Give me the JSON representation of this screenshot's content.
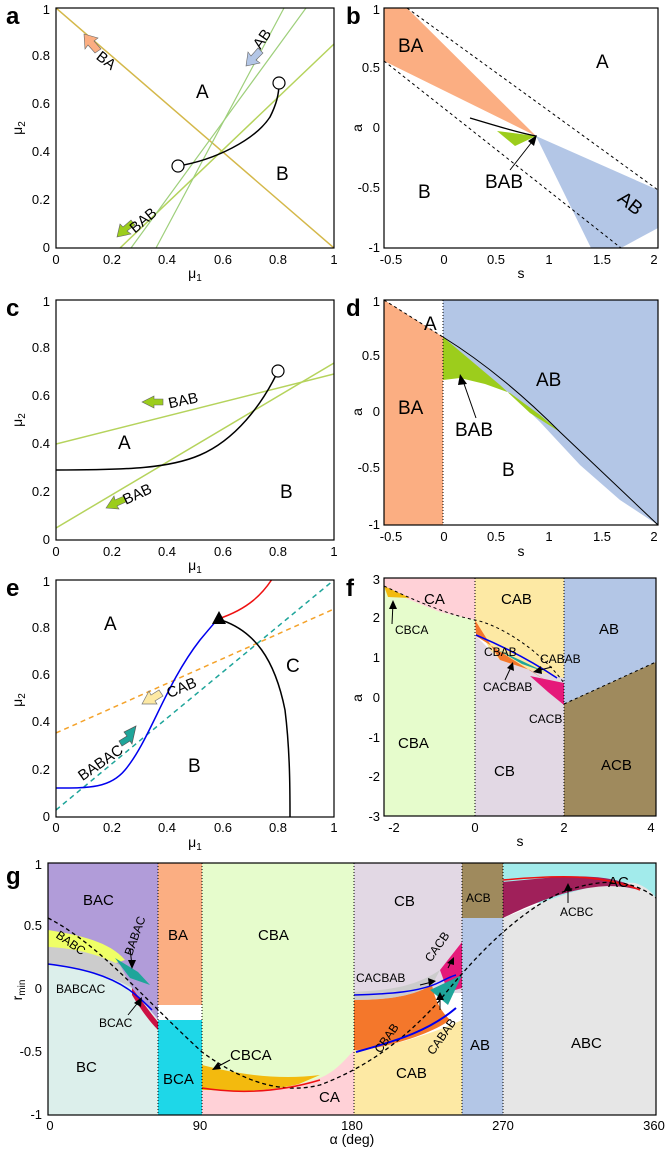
{
  "chart_data": [
    {
      "type": "line",
      "panel": "a",
      "xlabel": "μ1",
      "ylabel": "μ2",
      "xlim": [
        0,
        1
      ],
      "ylim": [
        0,
        1
      ],
      "xticks": [
        "0",
        "0.2",
        "0.4",
        "0.6",
        "0.8",
        "1"
      ],
      "yticks": [
        "0",
        "0.2",
        "0.4",
        "0.6",
        "0.8",
        "1"
      ],
      "regions": [
        "A",
        "B"
      ],
      "annotations": [
        "BA",
        "AB",
        "BAB"
      ],
      "lines": [
        {
          "color": "#d4b84a",
          "points": [
            [
              0,
              1
            ],
            [
              1,
              0
            ]
          ]
        },
        {
          "color": "#b5d35c",
          "points": [
            [
              0.23,
              0
            ],
            [
              1,
              0.85
            ]
          ]
        },
        {
          "color": "#9ecf7b",
          "points": [
            [
              0.27,
              0
            ],
            [
              0.9,
              1
            ]
          ]
        },
        {
          "color": "#9ecf7b",
          "points": [
            [
              0.36,
              0
            ],
            [
              0.82,
              1
            ]
          ]
        },
        {
          "color": "#000000",
          "points": [
            [
              0.44,
              0.34
            ],
            [
              0.55,
              0.37
            ],
            [
              0.65,
              0.42
            ],
            [
              0.74,
              0.52
            ],
            [
              0.8,
              0.68
            ]
          ]
        }
      ],
      "markers": [
        {
          "shape": "circle",
          "x": 0.44,
          "y": 0.34
        },
        {
          "shape": "circle",
          "x": 0.8,
          "y": 0.68
        }
      ]
    },
    {
      "type": "area",
      "panel": "b",
      "xlabel": "s",
      "ylabel": "a",
      "xlim": [
        -0.6,
        2
      ],
      "ylim": [
        -1,
        1
      ],
      "xticks": [
        "-0.5",
        "0",
        "0.5",
        "1",
        "1.5",
        "2"
      ],
      "yticks": [
        "-1",
        "-0.5",
        "0",
        "0.5",
        "1"
      ],
      "regions": [
        {
          "label": "BA",
          "color": "#fbae82",
          "points": [
            [
              -0.6,
              1
            ],
            [
              -0.38,
              1
            ],
            [
              0.88,
              -0.07
            ],
            [
              -0.6,
              0.61
            ]
          ]
        },
        {
          "label": "AB",
          "color": "#b3c6e6",
          "points": [
            [
              0.88,
              -0.07
            ],
            [
              2,
              -0.52
            ],
            [
              2,
              -0.83
            ],
            [
              1.67,
              -1
            ],
            [
              1.37,
              -1
            ]
          ]
        },
        {
          "label": "BAB",
          "color": "#9ccd1c",
          "points": [
            [
              0.5,
              -0.03
            ],
            [
              0.88,
              -0.07
            ],
            [
              0.7,
              -0.12
            ]
          ]
        }
      ],
      "labels": [
        "A",
        "B",
        "BAB"
      ],
      "dashed": [
        [
          [
            -0.38,
            1
          ],
          [
            2,
            -0.52
          ]
        ],
        [
          [
            -0.6,
            0.61
          ],
          [
            1.67,
            -1
          ]
        ]
      ]
    },
    {
      "type": "line",
      "panel": "c",
      "xlabel": "μ1",
      "ylabel": "μ2",
      "xlim": [
        0,
        1
      ],
      "ylim": [
        0,
        1
      ],
      "xticks": [
        "0",
        "0.2",
        "0.4",
        "0.6",
        "0.8",
        "1"
      ],
      "yticks": [
        "0",
        "0.2",
        "0.4",
        "0.6",
        "0.8",
        "1"
      ],
      "regions": [
        "A",
        "B"
      ],
      "annotations": [
        "BAB",
        "BAB"
      ],
      "lines": [
        {
          "color": "#b5d35c",
          "points": [
            [
              0,
              0.4
            ],
            [
              1,
              0.69
            ]
          ]
        },
        {
          "color": "#b5d35c",
          "points": [
            [
              0,
              0.05
            ],
            [
              1,
              0.73
            ]
          ]
        },
        {
          "color": "#000000",
          "points": [
            [
              0,
              0.29
            ],
            [
              0.3,
              0.3
            ],
            [
              0.5,
              0.35
            ],
            [
              0.65,
              0.44
            ],
            [
              0.75,
              0.55
            ],
            [
              0.8,
              0.67
            ]
          ]
        }
      ],
      "markers": [
        {
          "shape": "circle",
          "x": 0.8,
          "y": 0.67
        }
      ]
    },
    {
      "type": "area",
      "panel": "d",
      "xlabel": "s",
      "ylabel": "a",
      "xlim": [
        -0.6,
        2
      ],
      "ylim": [
        -1,
        1
      ],
      "xticks": [
        "-0.5",
        "0",
        "0.5",
        "1",
        "1.5",
        "2"
      ],
      "yticks": [
        "-1",
        "-0.5",
        "0",
        "0.5",
        "1"
      ],
      "regions": [
        {
          "label": "BA",
          "color": "#fbae82",
          "points": [
            [
              -0.6,
              1
            ],
            [
              -0.6,
              -1
            ],
            [
              0,
              -1
            ],
            [
              0,
              0.68
            ]
          ]
        },
        {
          "label": "AB",
          "color": "#b3c6e6",
          "points": [
            [
              0,
              0.68
            ],
            [
              0,
              1
            ],
            [
              2,
              1
            ],
            [
              2,
              -0.92
            ],
            [
              1.6,
              -0.62
            ],
            [
              1.2,
              -0.3
            ],
            [
              0.9,
              -0.05
            ],
            [
              0.6,
              0.17
            ],
            [
              0.35,
              0.3
            ],
            [
              0,
              0.36
            ]
          ]
        },
        {
          "label": "BAB",
          "color": "#9ccd1c",
          "points": [
            [
              0,
              0.68
            ],
            [
              0,
              0.31
            ],
            [
              0.1,
              0.29
            ],
            [
              0.3,
              0.22
            ],
            [
              0.6,
              0.07
            ],
            [
              0.9,
              -0.05
            ]
          ]
        }
      ],
      "labels": [
        "A",
        "B",
        "BAB"
      ]
    },
    {
      "type": "line",
      "panel": "e",
      "xlabel": "μ1",
      "ylabel": "μ2",
      "xlim": [
        0,
        1
      ],
      "ylim": [
        0,
        1
      ],
      "xticks": [
        "0",
        "0.2",
        "0.4",
        "0.6",
        "0.8",
        "1"
      ],
      "yticks": [
        "0",
        "0.2",
        "0.4",
        "0.6",
        "0.8",
        "1"
      ],
      "regions": [
        "A",
        "B",
        "C"
      ],
      "annotations": [
        "CAB",
        "BABAC"
      ],
      "lines": [
        {
          "color": "#0000ee",
          "points": [
            [
              0,
              0.12
            ],
            [
              0.1,
              0.13
            ],
            [
              0.2,
              0.17
            ],
            [
              0.3,
              0.27
            ],
            [
              0.4,
              0.42
            ],
            [
              0.5,
              0.54
            ],
            [
              0.58,
              0.59
            ]
          ]
        },
        {
          "color": "#ee1111",
          "points": [
            [
              0.58,
              0.59
            ],
            [
              0.65,
              0.62
            ],
            [
              0.72,
              0.72
            ],
            [
              0.78,
              0.87
            ],
            [
              0.82,
              1
            ]
          ]
        },
        {
          "color": "#000000",
          "points": [
            [
              0.58,
              0.59
            ],
            [
              0.68,
              0.54
            ],
            [
              0.75,
              0.45
            ],
            [
              0.8,
              0.3
            ],
            [
              0.82,
              0.12
            ],
            [
              0.83,
              0
            ]
          ]
        },
        {
          "color": "#f4a22a",
          "dashed": true,
          "points": [
            [
              0,
              0.36
            ],
            [
              1,
              0.87
            ]
          ]
        },
        {
          "color": "#1fa59a",
          "dashed": true,
          "points": [
            [
              0,
              0.05
            ],
            [
              1,
              1
            ]
          ]
        }
      ],
      "markers": [
        {
          "shape": "triangle",
          "x": 0.58,
          "y": 0.59
        }
      ]
    },
    {
      "type": "area",
      "panel": "f",
      "xlabel": "s",
      "ylabel": "a",
      "xlim": [
        -2.2,
        4.2
      ],
      "ylim": [
        -3,
        3
      ],
      "xticks": [
        "-2",
        "0",
        "2",
        "4"
      ],
      "yticks": [
        "-3",
        "-2",
        "-1",
        "0",
        "1",
        "2",
        "3"
      ],
      "regions": [
        {
          "label": "CA",
          "color": "#ffd1d7"
        },
        {
          "label": "CAB",
          "color": "#fde9a4"
        },
        {
          "label": "AB",
          "color": "#b3c6e6"
        },
        {
          "label": "CBA",
          "color": "#e6fccc"
        },
        {
          "label": "CB",
          "color": "#e2d8e4"
        },
        {
          "label": "ACB",
          "color": "#9f8a5d"
        },
        {
          "label": "CACB",
          "color": "#e5197a"
        },
        {
          "label": "CBAB",
          "color": "#f4772b"
        },
        {
          "label": "CABAB",
          "color": "#1fa59a"
        },
        {
          "label": "CACBAB",
          "color": "#cccccc"
        },
        {
          "label": "CBCA",
          "color": "#f3ba0e"
        }
      ]
    },
    {
      "type": "area",
      "panel": "g",
      "xlabel": "α (deg)",
      "ylabel": "r_min",
      "xlim": [
        0,
        360
      ],
      "ylim": [
        -1,
        1
      ],
      "xticks": [
        "0",
        "90",
        "180",
        "270",
        "360"
      ],
      "yticks": [
        "-1",
        "-0.5",
        "0",
        "0.5",
        "1"
      ],
      "regions": [
        {
          "label": "BAC",
          "color": "#b19cd9"
        },
        {
          "label": "BA",
          "color": "#fbae82"
        },
        {
          "label": "CBA",
          "color": "#e6fccc"
        },
        {
          "label": "CB",
          "color": "#e2d8e4"
        },
        {
          "label": "ACB",
          "color": "#9f8a5d"
        },
        {
          "label": "AC",
          "color": "#a2ebeb"
        },
        {
          "label": "BABC",
          "color": "#efff66"
        },
        {
          "label": "BABAC",
          "color": "#1fa59a"
        },
        {
          "label": "BABCAC",
          "color": "#cccccc"
        },
        {
          "label": "BCAC",
          "color": "#cc1144"
        },
        {
          "label": "BC",
          "color": "#dcefeb"
        },
        {
          "label": "BCA",
          "color": "#1ed7e8"
        },
        {
          "label": "CBCA",
          "color": "#f3ba0e"
        },
        {
          "label": "CA",
          "color": "#ffd1d7"
        },
        {
          "label": "CACBAB",
          "color": "#cccccc"
        },
        {
          "label": "CACB",
          "color": "#e5197a"
        },
        {
          "label": "CBAB",
          "color": "#f4772b"
        },
        {
          "label": "CABAB",
          "color": "#1fa59a"
        },
        {
          "label": "CAB",
          "color": "#fde9a4"
        },
        {
          "label": "AB",
          "color": "#b3c6e6"
        },
        {
          "label": "ABC",
          "color": "#e6e6e6"
        },
        {
          "label": "ACBC",
          "color": "#a0205a"
        }
      ]
    }
  ]
}
